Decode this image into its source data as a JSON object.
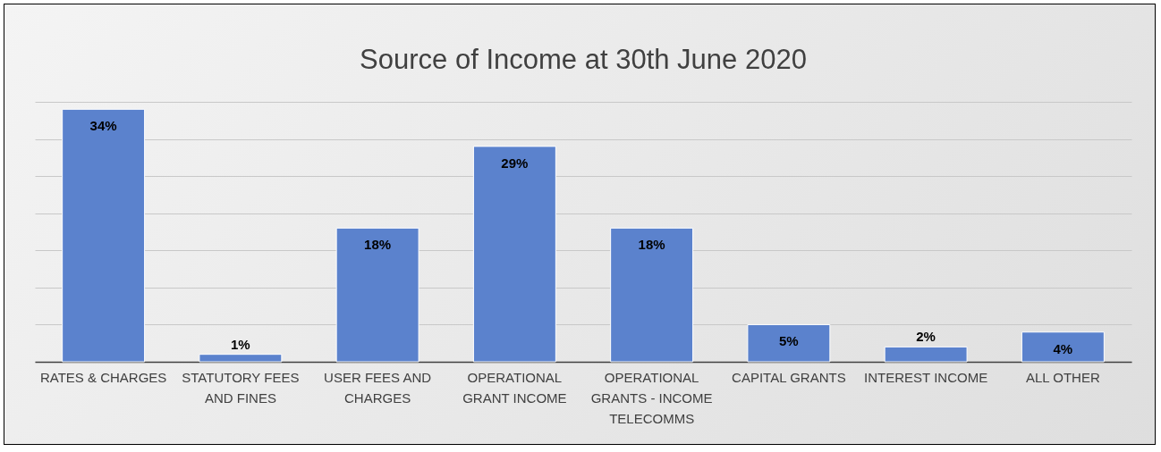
{
  "chart_data": {
    "type": "bar",
    "title": "Source of Income at 30th June 2020",
    "categories": [
      "RATES & CHARGES",
      "STATUTORY FEES AND FINES",
      "USER FEES AND CHARGES",
      "OPERATIONAL GRANT INCOME",
      "OPERATIONAL GRANTS - INCOME TELECOMMS",
      "CAPITAL GRANTS",
      "INTEREST INCOME",
      "ALL OTHER"
    ],
    "values": [
      34,
      1,
      18,
      29,
      18,
      5,
      2,
      4
    ],
    "value_labels": [
      "34%",
      "1%",
      "18%",
      "29%",
      "18%",
      "5%",
      "2%",
      "4%"
    ],
    "color": "#5b82cd",
    "ylim": [
      0,
      35
    ],
    "yticks": [
      {
        "value": 0,
        "label": null
      },
      {
        "value": 5,
        "label": null
      },
      {
        "value": 10,
        "label": null
      },
      {
        "value": 15,
        "label": null
      },
      {
        "value": 20,
        "label": null
      },
      {
        "value": 25,
        "label": null
      },
      {
        "value": 30,
        "label": null
      },
      {
        "value": 35,
        "label": null
      }
    ],
    "tick_labels": "x",
    "grid": "y"
  }
}
